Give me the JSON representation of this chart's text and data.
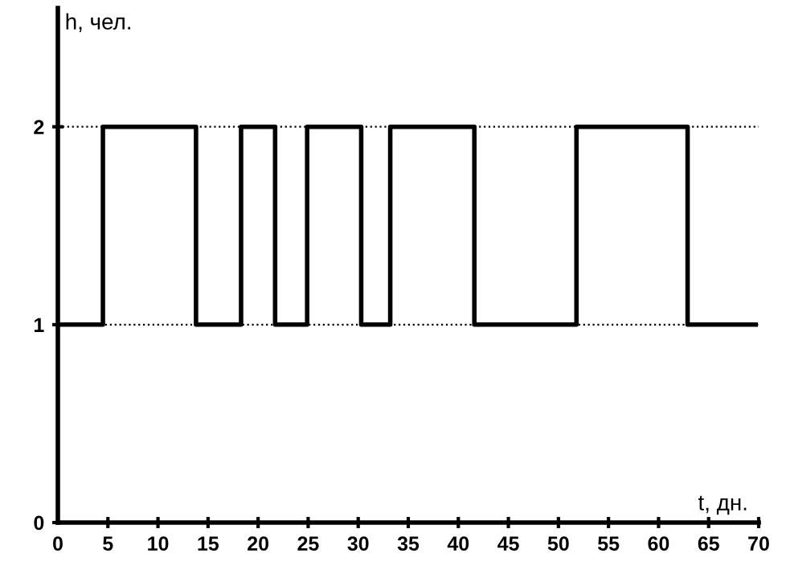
{
  "chart_data": {
    "type": "step",
    "xlabel": "t, дн.",
    "ylabel": "h, чел.",
    "x": [
      0,
      4.5,
      13.8,
      18.3,
      21.7,
      24.9,
      30.3,
      33.2,
      41.6,
      51.8,
      62.9,
      69.7
    ],
    "series": [
      {
        "color": "#000000",
        "values": [
          1,
          2,
          1,
          2,
          1,
          2,
          1,
          2,
          1,
          2,
          1,
          1
        ]
      }
    ],
    "xlim": [
      0,
      70
    ],
    "xticks": [
      0,
      5,
      10,
      15,
      20,
      25,
      30,
      35,
      40,
      45,
      50,
      55,
      60,
      65,
      70
    ],
    "ylim": [
      0,
      2.6
    ],
    "yticks": [
      0,
      1,
      2
    ],
    "grid": "y",
    "line_style": "solid"
  }
}
